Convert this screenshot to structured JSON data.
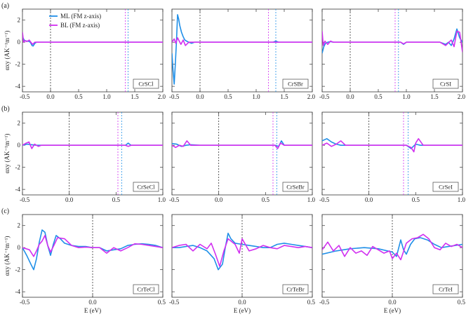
{
  "colors": {
    "ml": "#1f8fe8",
    "bl": "#d12ff0",
    "frame": "#333333"
  },
  "row_labels": [
    "(a)",
    "(b)",
    "(c)"
  ],
  "legend": {
    "ml": "ML (FM z-axis)",
    "bl": "BL (FM z-axis)"
  },
  "y_axis": {
    "label": "αxy (AK⁻¹m⁻¹)",
    "ticks": [
      "2",
      "0",
      "-2",
      "-4"
    ]
  },
  "x_axis_label": "E (eV)",
  "chart_data": [
    {
      "type": "line",
      "row": 0,
      "col": 0,
      "material": "CrSCl",
      "xlim": [
        -0.5,
        2.0
      ],
      "ylim": [
        -4.5,
        3.0
      ],
      "x_ticks": [
        "-0.5",
        "0.0",
        "0.5",
        "1.0",
        "1.5",
        "2.0"
      ],
      "vlines": [
        {
          "x": 0.0,
          "color": "black"
        },
        {
          "x": 1.33,
          "color": "bl"
        },
        {
          "x": 1.38,
          "color": "ml"
        }
      ],
      "series": [
        {
          "name": "ML (FM z-axis)",
          "x": [
            -0.5,
            -0.47,
            -0.44,
            -0.4,
            -0.36,
            -0.33,
            -0.31,
            -0.28,
            -0.25,
            -0.2,
            -0.1,
            0.0,
            2.0
          ],
          "y": [
            0.5,
            0.2,
            0.1,
            0.1,
            0.0,
            -0.3,
            -0.35,
            -0.1,
            0.0,
            0.0,
            0.0,
            0.0,
            0.0
          ]
        },
        {
          "name": "BL (FM z-axis)",
          "x": [
            -0.5,
            -0.48,
            -0.45,
            -0.42,
            -0.38,
            -0.35,
            -0.32,
            -0.28,
            -0.2,
            0.0,
            2.0
          ],
          "y": [
            0.9,
            0.0,
            0.15,
            0.05,
            0.2,
            0.0,
            -0.2,
            0.0,
            0.0,
            0.0,
            0.0
          ]
        }
      ]
    },
    {
      "type": "line",
      "row": 0,
      "col": 1,
      "material": "CrSBr",
      "xlim": [
        -0.5,
        2.0
      ],
      "ylim": [
        -4.5,
        3.0
      ],
      "x_ticks": [
        "-0.5",
        "0.0",
        "0.5",
        "1.0",
        "1.5",
        "2.0"
      ],
      "vlines": [
        {
          "x": 0.0,
          "color": "black"
        },
        {
          "x": 1.22,
          "color": "bl"
        },
        {
          "x": 1.35,
          "color": "ml"
        }
      ],
      "series": [
        {
          "name": "ML (FM z-axis)",
          "x": [
            -0.5,
            -0.48,
            -0.46,
            -0.44,
            -0.42,
            -0.4,
            -0.38,
            -0.36,
            -0.33,
            -0.3,
            -0.27,
            -0.24,
            -0.2,
            -0.15,
            -0.1,
            0.0,
            1.3,
            1.35,
            1.4,
            2.0
          ],
          "y": [
            -1.0,
            -2.6,
            -3.8,
            -2.0,
            0.0,
            2.5,
            2.1,
            1.5,
            0.9,
            0.5,
            0.2,
            0.1,
            0.0,
            -0.1,
            0.0,
            0.0,
            0.0,
            0.1,
            0.0,
            0.0
          ]
        },
        {
          "name": "BL (FM z-axis)",
          "x": [
            -0.5,
            -0.46,
            -0.43,
            -0.4,
            -0.37,
            -0.34,
            -0.3,
            -0.26,
            -0.2,
            -0.1,
            0.0,
            2.0
          ],
          "y": [
            0.0,
            0.3,
            -0.1,
            0.4,
            0.1,
            -0.2,
            0.2,
            -0.3,
            0.0,
            0.0,
            0.0,
            0.0
          ]
        }
      ]
    },
    {
      "type": "line",
      "row": 0,
      "col": 2,
      "material": "CrSI",
      "xlim": [
        -0.5,
        2.0
      ],
      "ylim": [
        -4.5,
        3.0
      ],
      "x_ticks": [
        "-0.5",
        "0.0",
        "0.5",
        "1.0",
        "1.5",
        "2.0"
      ],
      "vlines": [
        {
          "x": 0.0,
          "color": "black"
        },
        {
          "x": 0.8,
          "color": "bl"
        },
        {
          "x": 0.86,
          "color": "ml"
        }
      ],
      "series": [
        {
          "name": "ML (FM z-axis)",
          "x": [
            -0.5,
            -0.47,
            -0.44,
            -0.4,
            -0.35,
            -0.3,
            -0.2,
            0.0,
            0.9,
            0.95,
            1.0,
            1.6,
            1.7,
            1.75,
            1.8,
            1.85,
            1.9,
            1.95,
            2.0
          ],
          "y": [
            -1.0,
            -0.4,
            -0.1,
            0.0,
            0.05,
            0.0,
            0.0,
            0.0,
            0.0,
            -0.2,
            0.0,
            0.0,
            -0.2,
            0.0,
            -0.3,
            0.3,
            1.2,
            0.4,
            0.0
          ]
        },
        {
          "name": "BL (FM z-axis)",
          "x": [
            -0.5,
            -0.48,
            -0.45,
            -0.4,
            -0.35,
            -0.3,
            -0.2,
            0.0,
            0.9,
            0.95,
            1.0,
            1.6,
            1.7,
            1.8,
            1.85,
            1.9,
            1.95,
            2.0
          ],
          "y": [
            1.0,
            -0.3,
            0.1,
            -0.2,
            0.1,
            0.0,
            0.0,
            0.0,
            0.0,
            -0.15,
            0.0,
            0.0,
            -0.3,
            0.2,
            -0.4,
            1.0,
            0.9,
            -0.9
          ]
        }
      ]
    },
    {
      "type": "line",
      "row": 1,
      "col": 0,
      "material": "CrSeCl",
      "xlim": [
        -0.5,
        1.0
      ],
      "ylim": [
        -4.5,
        3.0
      ],
      "x_ticks": [
        "-0.5",
        "0.0",
        "0.5",
        "1.0"
      ],
      "vlines": [
        {
          "x": 0.0,
          "color": "black"
        },
        {
          "x": 0.52,
          "color": "bl"
        },
        {
          "x": 0.56,
          "color": "ml"
        }
      ],
      "series": [
        {
          "name": "ML (FM z-axis)",
          "x": [
            -0.5,
            -0.45,
            -0.4,
            -0.35,
            -0.3,
            -0.2,
            0.0,
            0.6,
            0.63,
            0.66,
            1.0
          ],
          "y": [
            0.0,
            0.1,
            0.05,
            0.0,
            0.0,
            0.0,
            0.0,
            0.0,
            0.2,
            0.0,
            0.0
          ]
        },
        {
          "name": "BL (FM z-axis)",
          "x": [
            -0.5,
            -0.46,
            -0.43,
            -0.4,
            -0.37,
            -0.33,
            -0.3,
            -0.2,
            0.0,
            0.6,
            0.63,
            0.66,
            1.0
          ],
          "y": [
            0.0,
            0.2,
            0.3,
            -0.3,
            0.1,
            -0.1,
            0.0,
            0.0,
            0.0,
            0.0,
            -0.1,
            0.0,
            0.0
          ]
        }
      ]
    },
    {
      "type": "line",
      "row": 1,
      "col": 1,
      "material": "CrSeBr",
      "xlim": [
        -0.5,
        1.0
      ],
      "ylim": [
        -4.5,
        3.0
      ],
      "x_ticks": [
        "-0.5",
        "0.0",
        "0.5",
        "1.0"
      ],
      "vlines": [
        {
          "x": 0.0,
          "color": "black"
        },
        {
          "x": 0.58,
          "color": "bl"
        },
        {
          "x": 0.62,
          "color": "ml"
        }
      ],
      "series": [
        {
          "name": "ML (FM z-axis)",
          "x": [
            -0.5,
            -0.45,
            -0.4,
            -0.35,
            -0.3,
            -0.2,
            0.0,
            0.6,
            0.64,
            0.67,
            0.7,
            1.0
          ],
          "y": [
            0.15,
            0.1,
            -0.1,
            0.0,
            0.05,
            0.0,
            0.0,
            0.0,
            -0.1,
            0.4,
            0.0,
            0.0
          ]
        },
        {
          "name": "BL (FM z-axis)",
          "x": [
            -0.5,
            -0.46,
            -0.42,
            -0.38,
            -0.34,
            -0.3,
            -0.2,
            0.0,
            0.6,
            0.63,
            0.66,
            0.7,
            1.0
          ],
          "y": [
            0.0,
            -0.2,
            0.0,
            -0.1,
            0.4,
            0.0,
            0.0,
            0.0,
            0.0,
            -0.3,
            0.2,
            0.0,
            0.0
          ]
        }
      ]
    },
    {
      "type": "line",
      "row": 1,
      "col": 2,
      "material": "CrSeI",
      "xlim": [
        -0.5,
        1.0
      ],
      "ylim": [
        -4.5,
        3.0
      ],
      "x_ticks": [
        "-0.5",
        "0.0",
        "0.5",
        "1.0"
      ],
      "vlines": [
        {
          "x": 0.0,
          "color": "black"
        },
        {
          "x": 0.37,
          "color": "bl"
        },
        {
          "x": 0.42,
          "color": "ml"
        }
      ],
      "series": [
        {
          "name": "ML (FM z-axis)",
          "x": [
            -0.5,
            -0.45,
            -0.4,
            -0.35,
            -0.3,
            -0.25,
            -0.2,
            0.0,
            0.4,
            0.45,
            0.5,
            0.55,
            1.0
          ],
          "y": [
            0.4,
            0.6,
            0.3,
            0.1,
            0.0,
            0.0,
            0.0,
            0.0,
            0.0,
            -0.3,
            0.1,
            0.0,
            0.0
          ]
        },
        {
          "name": "BL (FM z-axis)",
          "x": [
            -0.5,
            -0.45,
            -0.4,
            -0.35,
            -0.3,
            -0.25,
            -0.2,
            0.0,
            0.4,
            0.45,
            0.48,
            0.5,
            0.53,
            0.58,
            1.0
          ],
          "y": [
            0.0,
            0.2,
            -0.1,
            0.1,
            0.4,
            0.0,
            0.0,
            0.0,
            0.0,
            -0.2,
            -0.6,
            0.2,
            0.6,
            0.0,
            0.0
          ]
        }
      ]
    },
    {
      "type": "line",
      "row": 2,
      "col": 0,
      "material": "CrTeCl",
      "xlim": [
        -0.5,
        0.5
      ],
      "ylim": [
        -4.5,
        3.0
      ],
      "x_ticks": [
        "-0.5",
        "0.0",
        "0.5"
      ],
      "vlines": [
        {
          "x": 0.0,
          "color": "black"
        }
      ],
      "series": [
        {
          "name": "ML (FM z-axis)",
          "x": [
            -0.5,
            -0.47,
            -0.44,
            -0.42,
            -0.4,
            -0.38,
            -0.36,
            -0.34,
            -0.32,
            -0.3,
            -0.28,
            -0.26,
            -0.23,
            -0.2,
            -0.15,
            -0.1,
            -0.05,
            0.0,
            0.05,
            0.1,
            0.15,
            0.2,
            0.25,
            0.3,
            0.35,
            0.4,
            0.45,
            0.5
          ],
          "y": [
            0.0,
            -0.7,
            -1.5,
            -2.0,
            -1.0,
            0.5,
            1.6,
            1.4,
            0.2,
            -0.7,
            0.3,
            1.1,
            0.8,
            0.4,
            0.2,
            0.1,
            0.1,
            0.0,
            0.0,
            -0.3,
            -0.2,
            -0.1,
            0.2,
            0.3,
            0.35,
            0.3,
            0.2,
            0.0
          ]
        },
        {
          "name": "BL (FM z-axis)",
          "x": [
            -0.5,
            -0.45,
            -0.42,
            -0.4,
            -0.38,
            -0.36,
            -0.34,
            -0.32,
            -0.3,
            -0.28,
            -0.25,
            -0.2,
            -0.15,
            -0.1,
            -0.05,
            0.0,
            0.05,
            0.1,
            0.15,
            0.2,
            0.25,
            0.3,
            0.35,
            0.4,
            0.45,
            0.5
          ],
          "y": [
            0.0,
            -0.2,
            -0.8,
            -0.3,
            0.3,
            0.6,
            1.1,
            0.2,
            -0.4,
            0.1,
            0.9,
            0.8,
            0.2,
            0.0,
            0.05,
            0.0,
            0.0,
            -0.5,
            0.0,
            -0.3,
            0.0,
            0.35,
            0.3,
            0.2,
            0.1,
            0.0
          ]
        }
      ]
    },
    {
      "type": "line",
      "row": 2,
      "col": 1,
      "material": "CrTeBr",
      "xlim": [
        -0.5,
        0.5
      ],
      "ylim": [
        -4.5,
        3.0
      ],
      "x_ticks": [
        "-0.5",
        "0.0",
        "0.5"
      ],
      "vlines": [
        {
          "x": 0.0,
          "color": "black"
        }
      ],
      "series": [
        {
          "name": "ML (FM z-axis)",
          "x": [
            -0.5,
            -0.45,
            -0.4,
            -0.35,
            -0.3,
            -0.25,
            -0.2,
            -0.17,
            -0.14,
            -0.12,
            -0.1,
            -0.08,
            -0.05,
            0.0,
            0.05,
            0.1,
            0.15,
            0.2,
            0.25,
            0.3,
            0.35,
            0.4,
            0.45,
            0.5
          ],
          "y": [
            0.0,
            0.0,
            0.1,
            0.2,
            0.0,
            -0.3,
            -1.0,
            -2.0,
            -1.5,
            0.0,
            1.3,
            0.8,
            0.4,
            0.3,
            0.2,
            0.1,
            0.0,
            0.0,
            0.3,
            0.4,
            0.3,
            0.2,
            0.1,
            0.0
          ]
        },
        {
          "name": "BL (FM z-axis)",
          "x": [
            -0.5,
            -0.45,
            -0.4,
            -0.35,
            -0.3,
            -0.25,
            -0.22,
            -0.19,
            -0.16,
            -0.13,
            -0.1,
            -0.08,
            -0.05,
            -0.02,
            0.0,
            0.05,
            0.1,
            0.15,
            0.2,
            0.25,
            0.3,
            0.35,
            0.4,
            0.45,
            0.5
          ],
          "y": [
            0.0,
            0.2,
            0.3,
            -0.3,
            0.3,
            -0.1,
            0.4,
            -0.6,
            -1.7,
            -0.3,
            0.8,
            0.6,
            0.3,
            -0.5,
            0.8,
            -0.3,
            -0.1,
            0.2,
            0.0,
            -0.1,
            0.2,
            0.1,
            0.0,
            0.1,
            0.0
          ]
        }
      ]
    },
    {
      "type": "line",
      "row": 2,
      "col": 2,
      "material": "CrTeI",
      "xlim": [
        -0.5,
        0.5
      ],
      "ylim": [
        -4.5,
        3.0
      ],
      "x_ticks": [
        "-0.5",
        "0.0",
        "0.5"
      ],
      "vlines": [
        {
          "x": 0.0,
          "color": "black"
        }
      ],
      "series": [
        {
          "name": "ML (FM z-axis)",
          "x": [
            -0.5,
            -0.4,
            -0.3,
            -0.2,
            -0.1,
            0.0,
            0.03,
            0.06,
            0.08,
            0.1,
            0.13,
            0.16,
            0.2,
            0.25,
            0.3,
            0.35,
            0.4,
            0.45,
            0.5
          ],
          "y": [
            -0.6,
            -0.3,
            -0.1,
            0.0,
            -0.1,
            -0.4,
            -0.8,
            0.7,
            -0.2,
            -0.6,
            0.3,
            0.8,
            0.9,
            0.7,
            0.3,
            0.0,
            0.1,
            0.2,
            0.3
          ]
        },
        {
          "name": "BL (FM z-axis)",
          "x": [
            -0.5,
            -0.46,
            -0.42,
            -0.38,
            -0.34,
            -0.3,
            -0.26,
            -0.22,
            -0.18,
            -0.14,
            -0.1,
            -0.06,
            -0.02,
            0.0,
            0.03,
            0.06,
            0.1,
            0.14,
            0.18,
            0.22,
            0.26,
            0.3,
            0.34,
            0.38,
            0.42,
            0.46,
            0.5
          ],
          "y": [
            -0.2,
            0.5,
            -0.3,
            0.2,
            -0.8,
            0.0,
            -0.5,
            -0.3,
            -0.7,
            0.1,
            -0.2,
            -0.5,
            -0.3,
            -1.0,
            -0.5,
            -1.1,
            0.4,
            0.8,
            0.9,
            1.2,
            0.8,
            0.0,
            -0.2,
            0.4,
            0.1,
            0.3,
            0.0
          ]
        }
      ]
    }
  ]
}
